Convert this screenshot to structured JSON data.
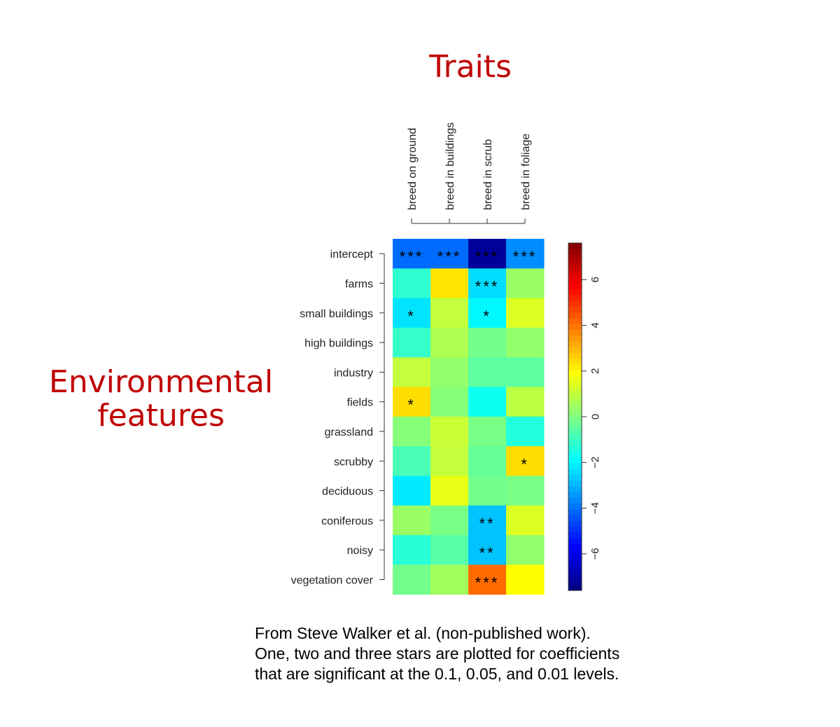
{
  "heading_top": "Traits",
  "heading_left": [
    "Environmental",
    "features"
  ],
  "caption": [
    "From Steve Walker et al. (non-published work).",
    "One, two and three stars are plotted for coefficients",
    "that are significant at the 0.1, 0.05, and 0.01 levels."
  ],
  "chart_data": {
    "type": "heatmap",
    "columns": [
      "breed on ground",
      "breed in buildings",
      "breed in scrub",
      "breed in foliage"
    ],
    "rows": [
      "intercept",
      "farms",
      "small buildings",
      "high buildings",
      "industry",
      "fields",
      "grassland",
      "scrubby",
      "deciduous",
      "coniferous",
      "noisy",
      "vegetation cover"
    ],
    "values": [
      [
        -4.1,
        -4.1,
        -7.2,
        -3.6
      ],
      [
        -1.2,
        2.3,
        -2.4,
        0.4
      ],
      [
        -2.3,
        1.0,
        -2.0,
        1.4
      ],
      [
        -1.1,
        0.7,
        -0.2,
        0.3
      ],
      [
        1.0,
        0.3,
        -0.5,
        -0.5
      ],
      [
        2.4,
        0.1,
        -1.7,
        0.9
      ],
      [
        0.1,
        1.1,
        -0.1,
        -1.4
      ],
      [
        -0.8,
        1.0,
        -0.4,
        2.4
      ],
      [
        -2.2,
        1.6,
        -0.2,
        -0.1
      ],
      [
        0.4,
        -0.1,
        -2.8,
        1.4
      ],
      [
        -1.3,
        -0.6,
        -2.8,
        0.3
      ],
      [
        -0.2,
        0.5,
        4.1,
        1.9
      ]
    ],
    "stars": [
      [
        "***",
        "***",
        "***",
        "***"
      ],
      [
        "",
        "",
        "***",
        ""
      ],
      [
        "*",
        "",
        "*",
        ""
      ],
      [
        "",
        "",
        "",
        ""
      ],
      [
        "",
        "",
        "",
        ""
      ],
      [
        "*",
        "",
        "",
        ""
      ],
      [
        "",
        "",
        "",
        ""
      ],
      [
        "",
        "",
        "",
        "*"
      ],
      [
        "",
        "",
        "",
        ""
      ],
      [
        "",
        "",
        "**",
        ""
      ],
      [
        "",
        "",
        "**",
        ""
      ],
      [
        "",
        "",
        "***",
        ""
      ]
    ],
    "colorbar": {
      "range": [
        -7.6,
        7.6
      ],
      "ticks": [
        -6,
        -4,
        -2,
        0,
        2,
        4,
        6
      ],
      "colormap": "jet"
    }
  }
}
